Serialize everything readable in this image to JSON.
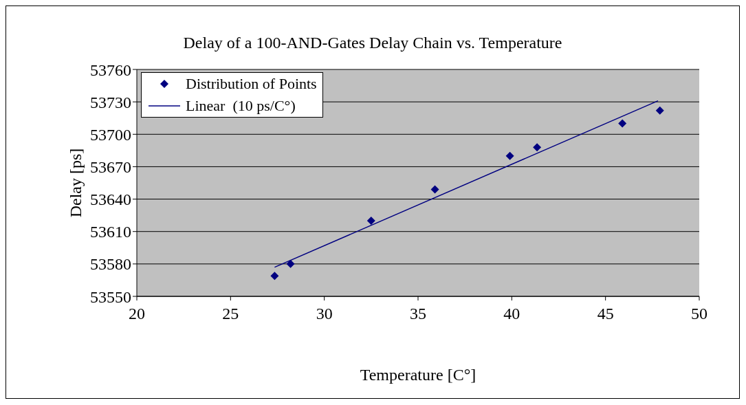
{
  "chart_data": {
    "type": "scatter",
    "title": "Delay of a 100-AND-Gates Delay Chain vs. Temperature",
    "xlabel": "Temperature [C°]",
    "ylabel": "Delay [ps]",
    "xlim": [
      20,
      50
    ],
    "xticks": [
      20,
      25,
      30,
      35,
      40,
      45,
      50
    ],
    "ylim": [
      53550,
      53760
    ],
    "yticks": [
      53550,
      53580,
      53610,
      53640,
      53670,
      53700,
      53730,
      53760
    ],
    "grid": "y",
    "legend": "top left",
    "series": [
      {
        "name": "Distribution of Points",
        "color": "#000080",
        "marker": "diamond",
        "x": [
          27.35,
          28.2,
          32.5,
          35.9,
          39.9,
          41.35,
          45.9,
          47.9
        ],
        "values": [
          53569,
          53580,
          53620,
          53649,
          53680,
          53688,
          53710,
          53722
        ]
      },
      {
        "type": "line",
        "name": "Linear  (10 ps/C°)",
        "color": "#000080",
        "line_style": "solid",
        "x": [
          27.35,
          47.8
        ],
        "values": [
          53577,
          53731
        ]
      }
    ]
  }
}
